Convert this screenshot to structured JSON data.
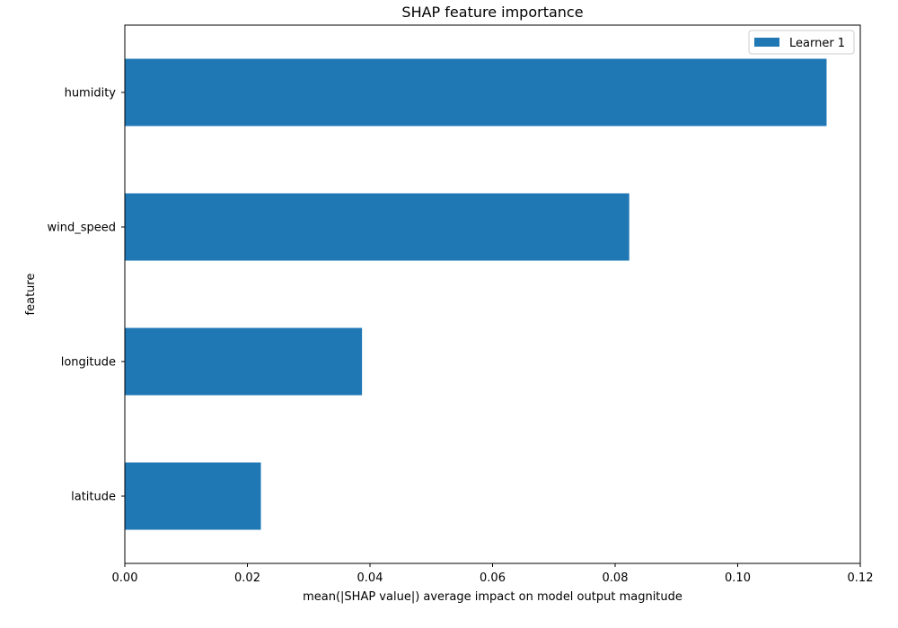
{
  "chart_data": {
    "type": "bar",
    "orientation": "horizontal",
    "title": "SHAP feature importance",
    "xlabel": "mean(|SHAP value|) average impact on model output magnitude",
    "ylabel": "feature",
    "categories": [
      "humidity",
      "wind_speed",
      "longitude",
      "latitude"
    ],
    "series": [
      {
        "name": "Learner 1",
        "values": [
          0.1145,
          0.0823,
          0.0387,
          0.0222
        ],
        "color": "#1f77b4"
      }
    ],
    "xlim": [
      0,
      0.12
    ],
    "xticks": [
      "0.00",
      "0.02",
      "0.04",
      "0.06",
      "0.08",
      "0.10",
      "0.12"
    ],
    "grid": false,
    "legend_position": "top-right"
  }
}
